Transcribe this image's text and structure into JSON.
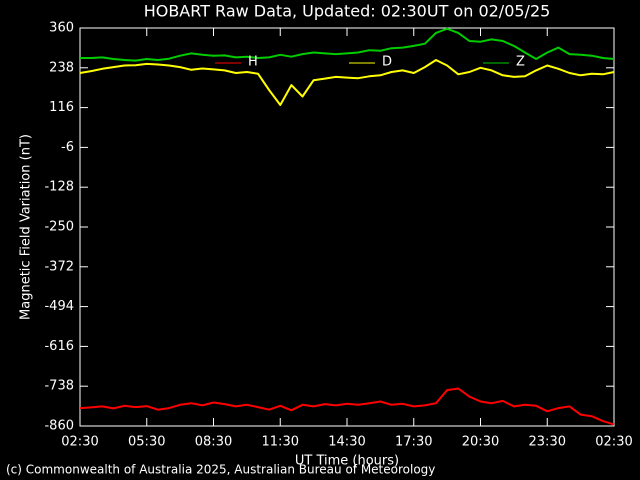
{
  "chart_data": {
    "type": "line",
    "title": "HOBART Raw Data, Updated: 02:30UT on 02/05/25",
    "xlabel": "UT Time (hours)",
    "ylabel": "Magnetic Field Variation (nT)",
    "credit": "(c) Commonwealth of Australia 2025, Australian Bureau of Meteorology",
    "legend": "top",
    "x": [
      0,
      0.5,
      1,
      1.5,
      2,
      2.5,
      3,
      3.5,
      4,
      4.5,
      5,
      5.5,
      6,
      6.5,
      7,
      7.5,
      8,
      8.5,
      9,
      9.5,
      10,
      10.5,
      11,
      11.5,
      12,
      12.5,
      13,
      13.5,
      14,
      14.5,
      15,
      15.5,
      16,
      16.5,
      17,
      17.5,
      18,
      18.5,
      19,
      19.5,
      20,
      20.5,
      21,
      21.5,
      22,
      22.5,
      23,
      23.5,
      24
    ],
    "series": [
      {
        "name": "H",
        "color": "#ff0000",
        "values": [
          -805,
          -803,
          -800,
          -806,
          -798,
          -802,
          -799,
          -810,
          -805,
          -795,
          -790,
          -797,
          -788,
          -793,
          -800,
          -795,
          -802,
          -810,
          -798,
          -812,
          -795,
          -800,
          -793,
          -797,
          -792,
          -795,
          -790,
          -785,
          -795,
          -792,
          -800,
          -797,
          -790,
          -750,
          -745,
          -770,
          -785,
          -790,
          -783,
          -800,
          -795,
          -798,
          -815,
          -805,
          -800,
          -825,
          -830,
          -845,
          -855
        ]
      },
      {
        "name": "D",
        "color": "#ffff00",
        "values": [
          222,
          228,
          235,
          240,
          245,
          246,
          250,
          248,
          245,
          240,
          232,
          236,
          233,
          230,
          222,
          225,
          220,
          170,
          124,
          185,
          150,
          200,
          205,
          210,
          208,
          206,
          212,
          215,
          225,
          230,
          222,
          240,
          262,
          245,
          218,
          225,
          238,
          230,
          215,
          210,
          212,
          230,
          245,
          235,
          222,
          215,
          220,
          218,
          225
        ]
      },
      {
        "name": "Z",
        "color": "#00cc00",
        "values": [
          268,
          268,
          270,
          265,
          262,
          260,
          265,
          262,
          266,
          275,
          282,
          278,
          275,
          276,
          270,
          272,
          268,
          270,
          278,
          272,
          280,
          285,
          282,
          280,
          282,
          285,
          292,
          290,
          298,
          300,
          305,
          312,
          345,
          358,
          345,
          320,
          318,
          325,
          320,
          305,
          285,
          265,
          285,
          300,
          280,
          278,
          275,
          268,
          265
        ]
      }
    ],
    "xlim": [
      0,
      24
    ],
    "xticks": [
      {
        "value": 0,
        "label": "02:30"
      },
      {
        "value": 3,
        "label": "05:30"
      },
      {
        "value": 6,
        "label": "08:30"
      },
      {
        "value": 9,
        "label": "11:30"
      },
      {
        "value": 12,
        "label": "14:30"
      },
      {
        "value": 15,
        "label": "17:30"
      },
      {
        "value": 18,
        "label": "20:30"
      },
      {
        "value": 21,
        "label": "23:30"
      },
      {
        "value": 24,
        "label": "02:30"
      }
    ],
    "ylim": [
      -860,
      360
    ],
    "yticks": [
      360,
      238,
      116,
      -6,
      -128,
      -250,
      -372,
      -494,
      -616,
      -738,
      -860
    ]
  }
}
